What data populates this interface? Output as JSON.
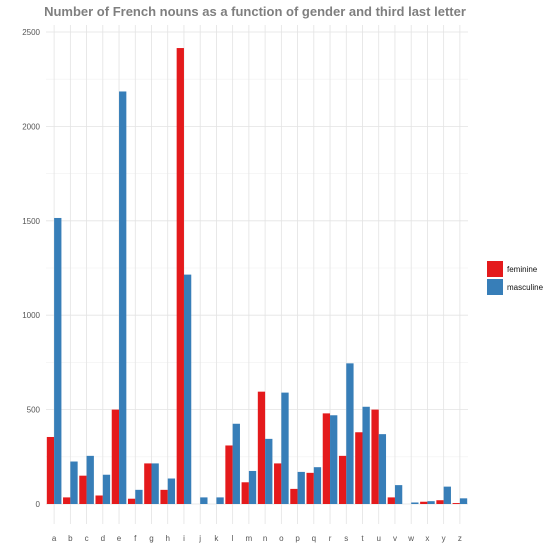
{
  "chart_data": {
    "type": "bar",
    "title": "Number of French nouns as a function of gender and third last letter",
    "xlabel": "",
    "ylabel": "",
    "ylim": [
      0,
      2500
    ],
    "yticks": [
      0,
      500,
      1000,
      1500,
      2000,
      2500
    ],
    "grid": true,
    "legend_position": "right",
    "categories": [
      "a",
      "b",
      "c",
      "d",
      "e",
      "f",
      "g",
      "h",
      "i",
      "j",
      "k",
      "l",
      "m",
      "n",
      "o",
      "p",
      "q",
      "r",
      "s",
      "t",
      "u",
      "v",
      "w",
      "x",
      "y",
      "z"
    ],
    "series": [
      {
        "name": "feminine",
        "color": "#e41a1c",
        "values": [
          355,
          35,
          150,
          45,
          500,
          28,
          215,
          75,
          2415,
          0,
          0,
          310,
          115,
          595,
          215,
          80,
          165,
          480,
          255,
          380,
          500,
          35,
          0,
          12,
          20,
          5
        ]
      },
      {
        "name": "masculine",
        "color": "#377eb8",
        "values": [
          1515,
          225,
          255,
          155,
          2185,
          75,
          215,
          135,
          1215,
          35,
          35,
          425,
          175,
          345,
          590,
          170,
          195,
          470,
          745,
          515,
          370,
          100,
          8,
          15,
          92,
          30
        ]
      }
    ]
  }
}
